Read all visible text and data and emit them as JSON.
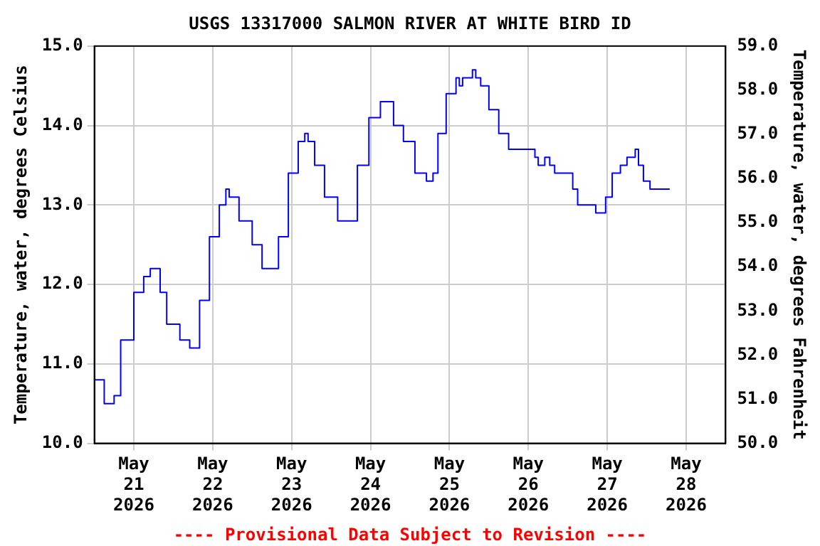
{
  "chart_data": {
    "type": "step",
    "title": "USGS 13317000 SALMON RIVER AT WHITE BIRD ID",
    "ylabel": "Temperature, water, degrees Celsius",
    "y2label": "Temperature, water, degrees Fahrenheit",
    "annotations": [
      "---- Provisional Data Subject to Revision ----"
    ],
    "x": [
      "2026-05-20T12:00",
      "2026-05-20T15:00",
      "2026-05-20T18:00",
      "2026-05-20T20:00",
      "2026-05-21T00:00",
      "2026-05-21T03:00",
      "2026-05-21T05:00",
      "2026-05-21T06:00",
      "2026-05-21T08:00",
      "2026-05-21T10:00",
      "2026-05-21T14:00",
      "2026-05-21T17:00",
      "2026-05-21T18:00",
      "2026-05-21T20:00",
      "2026-05-21T23:00",
      "2026-05-22T02:00",
      "2026-05-22T04:00",
      "2026-05-22T05:00",
      "2026-05-22T08:00",
      "2026-05-22T12:00",
      "2026-05-22T15:00",
      "2026-05-22T17:00",
      "2026-05-22T20:00",
      "2026-05-22T23:00",
      "2026-05-23T02:00",
      "2026-05-23T04:00",
      "2026-05-23T05:00",
      "2026-05-23T07:00",
      "2026-05-23T10:00",
      "2026-05-23T14:00",
      "2026-05-23T17:00",
      "2026-05-23T20:00",
      "2026-05-23T23:30",
      "2026-05-24T03:00",
      "2026-05-24T04:00",
      "2026-05-24T07:00",
      "2026-05-24T10:00",
      "2026-05-24T13:30",
      "2026-05-24T17:00",
      "2026-05-24T19:00",
      "2026-05-24T20:30",
      "2026-05-24T23:00",
      "2026-05-25T02:00",
      "2026-05-25T03:00",
      "2026-05-25T04:00",
      "2026-05-25T05:00",
      "2026-05-25T07:00",
      "2026-05-25T08:00",
      "2026-05-25T09:30",
      "2026-05-25T12:00",
      "2026-05-25T15:00",
      "2026-05-25T18:00",
      "2026-05-25T20:00",
      "2026-05-26T02:00",
      "2026-05-26T03:00",
      "2026-05-26T05:00",
      "2026-05-26T06:30",
      "2026-05-26T08:00",
      "2026-05-26T10:30",
      "2026-05-26T13:30",
      "2026-05-26T15:00",
      "2026-05-26T17:00",
      "2026-05-26T20:30",
      "2026-05-26T21:30",
      "2026-05-26T23:30",
      "2026-05-27T01:30",
      "2026-05-27T04:00",
      "2026-05-27T06:00",
      "2026-05-27T08:30",
      "2026-05-27T09:30",
      "2026-05-27T11:00",
      "2026-05-27T13:00",
      "2026-05-27T14:00",
      "2026-05-27T19:00"
    ],
    "series": [
      {
        "color": "#0000ff",
        "values": [
          11.0,
          10.8,
          10.5,
          10.6,
          11.3,
          11.9,
          12.1,
          12.2,
          12.2,
          11.9,
          11.5,
          11.3,
          11.2,
          11.2,
          11.8,
          12.6,
          13.0,
          13.2,
          13.1,
          12.8,
          12.5,
          12.2,
          12.2,
          12.6,
          13.4,
          13.8,
          13.9,
          13.8,
          13.5,
          13.1,
          12.8,
          12.8,
          13.5,
          14.1,
          14.3,
          14.3,
          14.0,
          13.8,
          13.4,
          13.3,
          13.4,
          13.9,
          14.4,
          14.6,
          14.5,
          14.6,
          14.6,
          14.7,
          14.6,
          14.5,
          14.2,
          13.9,
          13.7,
          13.7,
          13.6,
          13.5,
          13.6,
          13.5,
          13.4,
          13.4,
          13.2,
          13.0,
          13.0,
          12.9,
          12.9,
          13.1,
          13.4,
          13.5,
          13.6,
          13.7,
          13.5,
          13.3,
          13.2,
          13.2
        ]
      }
    ],
    "xlim": [
      "2026-05-20T12:00",
      "2026-05-28T12:00"
    ],
    "xticks": [
      {
        "value": "2026-05-21",
        "label": "May\n21\n2026"
      },
      {
        "value": "2026-05-22",
        "label": "May\n22\n2026"
      },
      {
        "value": "2026-05-23",
        "label": "May\n23\n2026"
      },
      {
        "value": "2026-05-24",
        "label": "May\n24\n2026"
      },
      {
        "value": "2026-05-25",
        "label": "May\n25\n2026"
      },
      {
        "value": "2026-05-26",
        "label": "May\n26\n2026"
      },
      {
        "value": "2026-05-27",
        "label": "May\n27\n2026"
      },
      {
        "value": "2026-05-28",
        "label": "May\n28\n2026"
      }
    ],
    "ylim": [
      10,
      15
    ],
    "yticks": [
      {
        "value": 10,
        "label": "10.0"
      },
      {
        "value": 11,
        "label": "11.0"
      },
      {
        "value": 12,
        "label": "12.0"
      },
      {
        "value": 13,
        "label": "13.0"
      },
      {
        "value": 14,
        "label": "14.0"
      },
      {
        "value": 15,
        "label": "15.0"
      }
    ],
    "y2lim": [
      50,
      59
    ],
    "y2ticks": [
      {
        "value": 50,
        "label": "50.0"
      },
      {
        "value": 51,
        "label": "51.0"
      },
      {
        "value": 52,
        "label": "52.0"
      },
      {
        "value": 53,
        "label": "53.0"
      },
      {
        "value": 54,
        "label": "54.0"
      },
      {
        "value": 55,
        "label": "55.0"
      },
      {
        "value": 56,
        "label": "56.0"
      },
      {
        "value": 57,
        "label": "57.0"
      },
      {
        "value": 58,
        "label": "58.0"
      },
      {
        "value": 59,
        "label": "59.0"
      }
    ],
    "grid": true,
    "legend": false,
    "marker": "none",
    "line_style": "solid"
  }
}
